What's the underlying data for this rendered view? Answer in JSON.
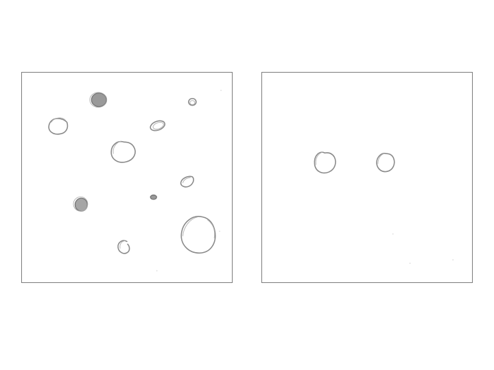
{
  "panels": [
    {
      "name": "left",
      "circles": [
        {
          "kind": "filled"
        },
        {
          "kind": "outline"
        },
        {
          "kind": "outline"
        },
        {
          "kind": "outline"
        },
        {
          "kind": "outline"
        },
        {
          "kind": "outline"
        },
        {
          "kind": "filled"
        },
        {
          "kind": "filled"
        },
        {
          "kind": "outline"
        },
        {
          "kind": "outline"
        }
      ]
    },
    {
      "name": "right",
      "circles": [
        {
          "kind": "outline"
        },
        {
          "kind": "outline"
        }
      ]
    }
  ],
  "colors": {
    "border": "#7a7a7a",
    "stroke": "#8a8a8a",
    "fill": "#9a9a9a",
    "background": "#ffffff"
  }
}
